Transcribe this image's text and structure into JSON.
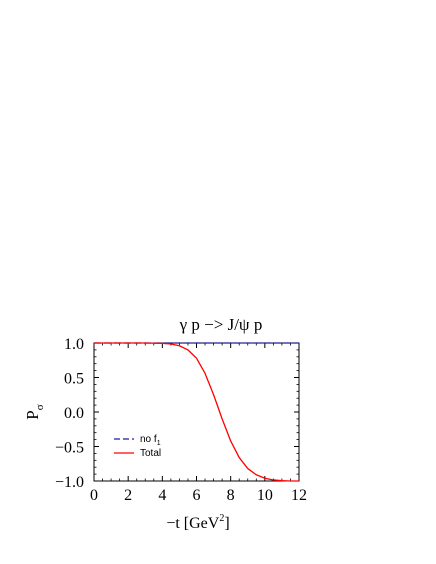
{
  "chart_data": {
    "type": "line",
    "title": "γ p −> J/ψ p",
    "xlabel": "−t [GeV",
    "xlabel_sup": "2",
    "xlabel_close": "]",
    "ylabel": "P",
    "ylabel_sub": "σ",
    "xlim": [
      0,
      12
    ],
    "ylim": [
      -1.0,
      1.0
    ],
    "xticks": [
      0,
      2,
      4,
      6,
      8,
      10,
      12
    ],
    "xtick_labels": [
      "0",
      "2",
      "4",
      "6",
      "8",
      "10",
      "12"
    ],
    "yticks": [
      -1.0,
      -0.5,
      0.0,
      0.5,
      1.0
    ],
    "ytick_labels": [
      "−1.0",
      "−0.5",
      "0.0",
      "0.5",
      "1.0"
    ],
    "grid": false,
    "legend_position": "bottom-left",
    "series": [
      {
        "name": "no f",
        "name_sub": "1",
        "color": "#1a1aa8",
        "style": "dashed",
        "x": [
          0,
          2,
          4,
          6,
          8,
          10,
          12
        ],
        "y": [
          1.0,
          1.0,
          1.0,
          1.0,
          1.0,
          1.0,
          1.0
        ]
      },
      {
        "name": "Total",
        "color": "#ff0000",
        "style": "solid",
        "x": [
          0,
          1,
          2,
          3,
          4,
          4.5,
          5,
          5.5,
          6,
          6.5,
          7,
          7.5,
          8,
          8.5,
          9,
          9.5,
          10,
          10.5,
          11,
          11.5,
          12
        ],
        "y": [
          1.0,
          1.0,
          1.0,
          1.0,
          0.995,
          0.985,
          0.96,
          0.9,
          0.78,
          0.56,
          0.25,
          -0.1,
          -0.42,
          -0.66,
          -0.82,
          -0.91,
          -0.96,
          -0.985,
          -0.995,
          -1.0,
          -1.0
        ]
      }
    ]
  }
}
